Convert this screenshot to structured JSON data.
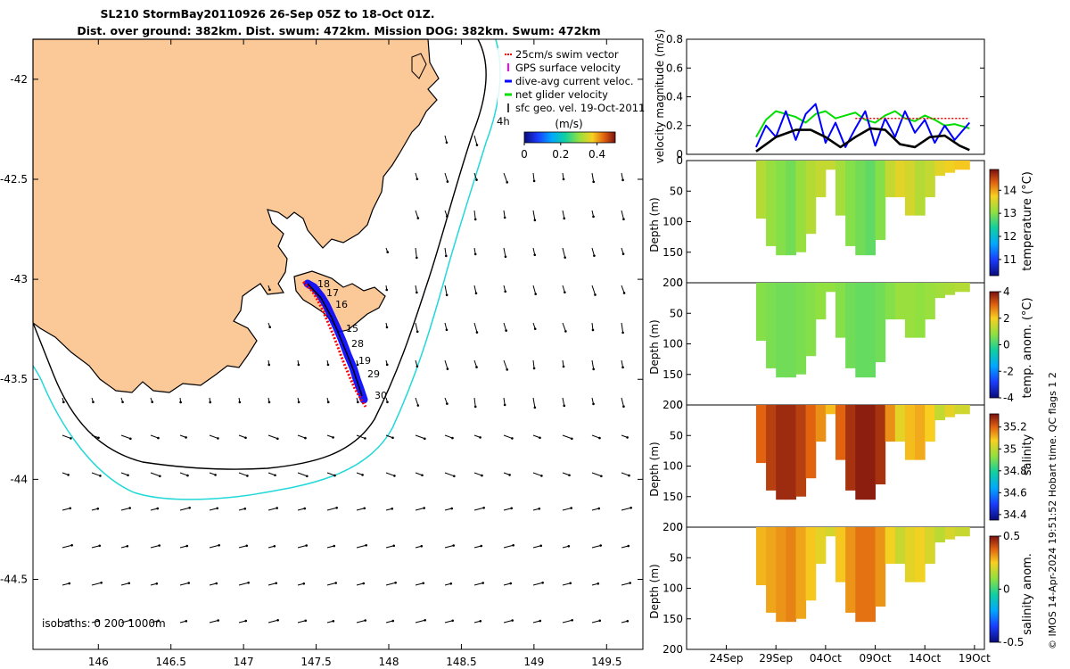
{
  "chart_data": [
    {
      "type": "map",
      "title_line1": "SL210 StormBay20110926 26-Sep 05Z to 18-Oct 01Z.",
      "title_line2": "Dist. over ground: 382km. Dist. swum: 472km. Mission DOG: 382km. Swum: 472km",
      "x_ticks": [
        "146",
        "146.5",
        "147",
        "147.5",
        "148",
        "148.5",
        "149",
        "149.5"
      ],
      "x_tick_values": [
        146,
        146.5,
        147,
        147.5,
        148,
        148.5,
        149,
        149.5
      ],
      "y_ticks": [
        "-42",
        "-42.5",
        "-43",
        "-43.5",
        "-44",
        "-44.5"
      ],
      "y_tick_values": [
        -42,
        -42.5,
        -43,
        -43.5,
        -44,
        -44.5
      ],
      "xlim": [
        145.55,
        149.75
      ],
      "ylim": [
        -44.85,
        -41.8
      ],
      "legend": [
        {
          "label": "25cm/s swim vector",
          "color": "#ff0000"
        },
        {
          "label": "GPS surface velocity",
          "color": "#ff00ff"
        },
        {
          "label": "dive-avg current veloc.",
          "color": "#0000ff"
        },
        {
          "label": "net glider velocity",
          "color": "#00dd00"
        },
        {
          "label": "sfc geo. vel. 19-Oct-2011",
          "color": "#000000"
        }
      ],
      "legend_extra": "4h",
      "colorbar_label": "(m/s)",
      "colorbar_ticks": [
        "0",
        "0.2",
        "0.4"
      ],
      "colorbar_tick_values": [
        0,
        0.2,
        0.4
      ],
      "colorbar_range": [
        0,
        0.5
      ],
      "isobath_note": "isobaths: 0  200  1000m",
      "track_labels": [
        "18",
        "17",
        "16",
        "15",
        "28",
        "19",
        "29",
        "30"
      ],
      "track_lon": [
        147.42,
        147.5,
        147.58,
        147.66,
        147.72,
        147.76,
        147.8,
        147.84
      ],
      "track_lat": [
        -43.1,
        -43.18,
        -43.26,
        -43.34,
        -43.42,
        -43.5,
        -43.58,
        -43.68
      ]
    },
    {
      "type": "line",
      "ylabel": "velocity magnitude (m/s)",
      "ylim": [
        0,
        0.8
      ],
      "y_ticks": [
        "0",
        "0.2",
        "0.4",
        "0.6",
        "0.8"
      ],
      "y_tick_values": [
        0,
        0.2,
        0.4,
        0.6,
        0.8
      ],
      "x_ticks": [
        "24Sep",
        "29Sep",
        "04Oct",
        "09Oct",
        "14Oct",
        "19Oct"
      ],
      "x_tick_values": [
        24,
        29,
        34,
        39,
        44,
        49
      ],
      "xlim": [
        20,
        50
      ],
      "series": [
        {
          "name": "net glider velocity",
          "color": "#00dd00",
          "x": [
            27,
            28,
            29,
            30,
            31,
            32,
            33,
            34,
            35,
            36,
            37,
            38,
            39,
            40,
            41,
            42,
            43,
            44,
            45,
            46,
            47,
            48.5
          ],
          "values": [
            0.12,
            0.24,
            0.3,
            0.28,
            0.26,
            0.22,
            0.28,
            0.3,
            0.25,
            0.27,
            0.29,
            0.24,
            0.22,
            0.27,
            0.3,
            0.25,
            0.23,
            0.27,
            0.24,
            0.2,
            0.21,
            0.18
          ]
        },
        {
          "name": "dive-avg current veloc.",
          "color": "#0000ff",
          "x": [
            27,
            28,
            29,
            30,
            31,
            32,
            33,
            34,
            35,
            36,
            37,
            38,
            39,
            40,
            41,
            42,
            43,
            44,
            45,
            46,
            47,
            48.5
          ],
          "values": [
            0.05,
            0.2,
            0.12,
            0.3,
            0.1,
            0.28,
            0.35,
            0.08,
            0.22,
            0.05,
            0.18,
            0.3,
            0.06,
            0.25,
            0.12,
            0.3,
            0.15,
            0.24,
            0.08,
            0.2,
            0.1,
            0.22
          ]
        },
        {
          "name": "25cm/s swim vector",
          "color": "#ff0000",
          "x": [
            37,
            48.5
          ],
          "values": [
            0.25,
            0.25
          ]
        },
        {
          "name": "mean",
          "color": "#000000",
          "x": [
            27,
            29,
            31,
            32.5,
            34,
            35.5,
            37,
            38.5,
            40,
            41.5,
            43,
            44.5,
            46,
            47.5,
            48.5
          ],
          "values": [
            0.02,
            0.12,
            0.17,
            0.17,
            0.12,
            0.05,
            0.12,
            0.18,
            0.17,
            0.07,
            0.05,
            0.12,
            0.13,
            0.06,
            0.03
          ]
        }
      ]
    },
    {
      "type": "heatmap",
      "name": "temperature",
      "ylabel": "Depth (m)",
      "colorbar_label": "temperature (°C)",
      "colorbar_ticks": [
        "11",
        "12",
        "13",
        "14"
      ],
      "colorbar_tick_values": [
        11,
        12,
        13,
        14
      ],
      "colorbar_range": [
        10.3,
        14.9
      ],
      "y_ticks": [
        "0",
        "50",
        "100",
        "150",
        "200"
      ],
      "y_tick_values": [
        0,
        50,
        100,
        150,
        200
      ],
      "ylim": [
        200,
        0
      ],
      "x": [
        27,
        28,
        29,
        30,
        31,
        32,
        33,
        34,
        35,
        36,
        37,
        38,
        39,
        40,
        41,
        42,
        43,
        44,
        45,
        46,
        47,
        48.5
      ],
      "max_depth": [
        15,
        95,
        140,
        155,
        150,
        120,
        60,
        15,
        15,
        90,
        140,
        155,
        130,
        60,
        20,
        60,
        90,
        60,
        25,
        20,
        15,
        10
      ],
      "values": [
        13.3,
        13.1,
        13.0,
        12.9,
        13.1,
        13.3,
        13.4,
        13.4,
        13.2,
        13.0,
        12.9,
        12.8,
        13.0,
        13.4,
        13.6,
        13.5,
        13.3,
        13.4,
        13.6,
        13.7,
        13.8,
        14.0
      ]
    },
    {
      "type": "heatmap",
      "name": "temp. anom.",
      "ylabel": "Depth (m)",
      "colorbar_label": "temp. anom. (°C)",
      "colorbar_ticks": [
        "-4",
        "-2",
        "0",
        "2",
        "4"
      ],
      "colorbar_tick_values": [
        -4,
        -2,
        0,
        2,
        4
      ],
      "colorbar_range": [
        -4,
        4
      ],
      "y_ticks": [
        "0",
        "50",
        "100",
        "150",
        "200"
      ],
      "y_tick_values": [
        0,
        50,
        100,
        150,
        200
      ],
      "ylim": [
        200,
        0
      ],
      "x": [
        27,
        28,
        29,
        30,
        31,
        32,
        33,
        34,
        35,
        36,
        37,
        38,
        39,
        40,
        41,
        42,
        43,
        44,
        45,
        46,
        47,
        48.5
      ],
      "max_depth": [
        15,
        95,
        140,
        155,
        150,
        120,
        60,
        15,
        15,
        90,
        140,
        155,
        130,
        60,
        20,
        60,
        90,
        60,
        25,
        20,
        15,
        10
      ],
      "values": [
        0.7,
        0.6,
        0.5,
        0.5,
        0.6,
        0.7,
        0.8,
        0.8,
        0.7,
        0.5,
        0.4,
        0.4,
        0.5,
        0.7,
        0.9,
        0.9,
        0.8,
        0.9,
        1.0,
        1.1,
        1.2,
        1.4
      ]
    },
    {
      "type": "heatmap",
      "name": "salinity",
      "ylabel": "Depth (m)",
      "colorbar_label": "salinity",
      "colorbar_ticks": [
        "34.4",
        "34.6",
        "34.8",
        "35",
        "35.2"
      ],
      "colorbar_tick_values": [
        34.4,
        34.6,
        34.8,
        35,
        35.2
      ],
      "colorbar_range": [
        34.35,
        35.32
      ],
      "y_ticks": [
        "0",
        "50",
        "100",
        "150",
        "200"
      ],
      "y_tick_values": [
        0,
        50,
        100,
        150,
        200
      ],
      "ylim": [
        200,
        0
      ],
      "x": [
        27,
        28,
        29,
        30,
        31,
        32,
        33,
        34,
        35,
        36,
        37,
        38,
        39,
        40,
        41,
        42,
        43,
        44,
        45,
        46,
        47,
        48.5
      ],
      "max_depth": [
        15,
        95,
        140,
        155,
        150,
        120,
        60,
        15,
        15,
        90,
        140,
        155,
        130,
        60,
        20,
        60,
        90,
        60,
        25,
        20,
        15,
        10
      ],
      "values": [
        35.2,
        35.25,
        35.28,
        35.28,
        35.25,
        35.2,
        35.15,
        35.1,
        35.2,
        35.27,
        35.3,
        35.3,
        35.27,
        35.15,
        35.05,
        35.1,
        35.12,
        35.08,
        35.0,
        35.05,
        35.02,
        34.98
      ]
    },
    {
      "type": "heatmap",
      "name": "salinity anom.",
      "ylabel": "Depth (m)",
      "colorbar_label": "salinity anom.",
      "colorbar_ticks": [
        "-0.5",
        "0",
        "0.5"
      ],
      "colorbar_tick_values": [
        -0.5,
        0,
        0.5
      ],
      "colorbar_range": [
        -0.5,
        0.5
      ],
      "y_ticks": [
        "0",
        "50",
        "100",
        "150",
        "200"
      ],
      "y_tick_values": [
        0,
        50,
        100,
        150,
        200
      ],
      "ylim": [
        200,
        0
      ],
      "x": [
        27,
        28,
        29,
        30,
        31,
        32,
        33,
        34,
        35,
        36,
        37,
        38,
        39,
        40,
        41,
        42,
        43,
        44,
        45,
        46,
        47,
        48.5
      ],
      "max_depth": [
        15,
        95,
        140,
        155,
        150,
        120,
        60,
        15,
        15,
        90,
        140,
        155,
        130,
        60,
        20,
        60,
        90,
        60,
        25,
        20,
        15,
        10
      ],
      "values": [
        0.28,
        0.3,
        0.32,
        0.34,
        0.3,
        0.26,
        0.22,
        0.2,
        0.26,
        0.32,
        0.36,
        0.36,
        0.32,
        0.24,
        0.18,
        0.22,
        0.24,
        0.2,
        0.16,
        0.2,
        0.18,
        0.16
      ]
    }
  ],
  "x_axis_dates": [
    "24Sep",
    "29Sep",
    "04Oct",
    "09Oct",
    "14Oct",
    "19Oct"
  ],
  "right_note": "© IMOS 14-Apr-2024 19:51:52 Hobart time. QC flags 1  2"
}
